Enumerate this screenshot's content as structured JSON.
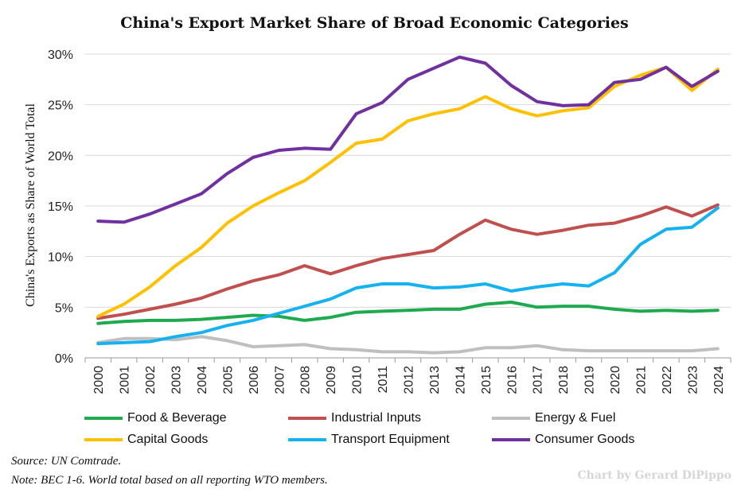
{
  "chart_data": {
    "type": "line",
    "title": "China's Export Market Share of Broad Economic Categories",
    "xlabel": "",
    "ylabel": "China's Exports as Share of World Total",
    "ylim": [
      0,
      30
    ],
    "yticks": [
      0,
      5,
      10,
      15,
      20,
      25,
      30
    ],
    "ytick_labels": [
      "0%",
      "5%",
      "10%",
      "15%",
      "20%",
      "25%",
      "30%"
    ],
    "grid": "horizontal",
    "legend_position": "bottom",
    "categories": [
      "2000",
      "2001",
      "2002",
      "2003",
      "2004",
      "2005",
      "2006",
      "2007",
      "2008",
      "2009",
      "2010",
      "2011",
      "2012",
      "2013",
      "2014",
      "2015",
      "2016",
      "2017",
      "2018",
      "2019",
      "2020",
      "2021",
      "2022",
      "2023",
      "2024"
    ],
    "series": [
      {
        "name": "Food & Beverage",
        "color": "#1faa4f",
        "values": [
          3.4,
          3.6,
          3.7,
          3.7,
          3.8,
          4.0,
          4.2,
          4.1,
          3.7,
          4.0,
          4.5,
          4.6,
          4.7,
          4.8,
          4.8,
          5.3,
          5.5,
          5.0,
          5.1,
          5.1,
          4.8,
          4.6,
          4.7,
          4.6,
          4.7
        ]
      },
      {
        "name": "Industrial Inputs",
        "color": "#c0504d",
        "values": [
          3.9,
          4.3,
          4.8,
          5.3,
          5.9,
          6.8,
          7.6,
          8.2,
          9.1,
          8.3,
          9.1,
          9.8,
          10.2,
          10.6,
          12.2,
          13.6,
          12.7,
          12.2,
          12.6,
          13.1,
          13.3,
          14.0,
          14.9,
          14.0,
          15.1
        ]
      },
      {
        "name": "Energy & Fuel",
        "color": "#bfbfbf",
        "values": [
          1.5,
          1.9,
          1.9,
          1.8,
          2.1,
          1.7,
          1.1,
          1.2,
          1.3,
          0.9,
          0.8,
          0.6,
          0.6,
          0.5,
          0.6,
          1.0,
          1.0,
          1.2,
          0.8,
          0.7,
          0.7,
          0.7,
          0.7,
          0.7,
          0.9
        ]
      },
      {
        "name": "Capital Goods",
        "color": "#ffc000",
        "values": [
          4.1,
          5.3,
          7.0,
          9.1,
          10.9,
          13.3,
          15.0,
          16.3,
          17.5,
          19.3,
          21.2,
          21.6,
          23.4,
          24.1,
          24.6,
          25.8,
          24.6,
          23.9,
          24.4,
          24.7,
          26.8,
          27.9,
          28.7,
          26.4,
          28.5
        ]
      },
      {
        "name": "Transport Equipment",
        "color": "#16b2ef",
        "values": [
          1.4,
          1.5,
          1.6,
          2.1,
          2.5,
          3.2,
          3.7,
          4.4,
          5.1,
          5.8,
          6.9,
          7.3,
          7.3,
          6.9,
          7.0,
          7.3,
          6.6,
          7.0,
          7.3,
          7.1,
          8.4,
          11.2,
          12.7,
          12.9,
          14.8
        ]
      },
      {
        "name": "Consumer Goods",
        "color": "#7030a0",
        "values": [
          13.5,
          13.4,
          14.2,
          15.2,
          16.2,
          18.2,
          19.8,
          20.5,
          20.7,
          20.6,
          24.1,
          25.2,
          27.5,
          28.6,
          29.7,
          29.1,
          26.9,
          25.3,
          24.9,
          25.0,
          27.2,
          27.5,
          28.7,
          26.8,
          28.3
        ]
      }
    ]
  },
  "footnotes": {
    "source": "Source: UN Comtrade.",
    "note": "Note: BEC 1-6. World total based on all reporting WTO members."
  },
  "credit": "Chart by Gerard DiPippo"
}
